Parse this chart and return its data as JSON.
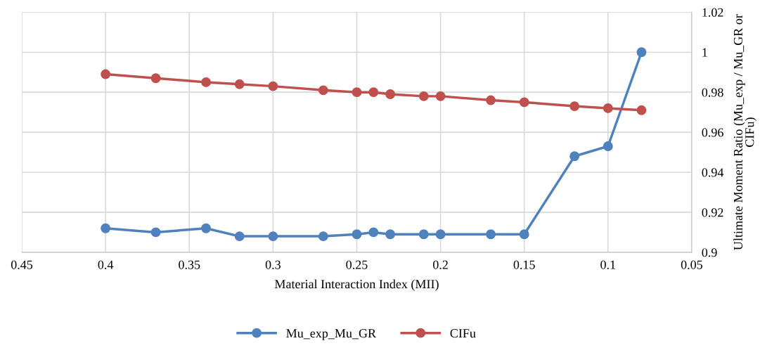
{
  "chart_data": {
    "type": "line",
    "xlabel": "Material Interaction Index (MII)",
    "ylabel": "Ultimate Moment Ratio (Mu_exp / Mu_GR or\nCIFu)",
    "x": [
      0.4,
      0.37,
      0.34,
      0.32,
      0.3,
      0.27,
      0.25,
      0.24,
      0.23,
      0.21,
      0.2,
      0.17,
      0.15,
      0.12,
      0.1,
      0.08
    ],
    "series": [
      {
        "name": "Mu_exp_Mu_GR",
        "color": "#4f81bd",
        "values": [
          0.912,
          0.91,
          0.912,
          0.908,
          0.908,
          0.908,
          0.909,
          0.91,
          0.909,
          0.909,
          0.909,
          0.909,
          0.909,
          0.948,
          0.953,
          1.0
        ]
      },
      {
        "name": "CIFu",
        "color": "#c0504d",
        "values": [
          0.989,
          0.987,
          0.985,
          0.984,
          0.983,
          0.981,
          0.98,
          0.98,
          0.979,
          0.978,
          0.978,
          0.976,
          0.975,
          0.973,
          0.972,
          0.971
        ]
      }
    ],
    "xlim": [
      0.45,
      0.05
    ],
    "xticks": [
      0.45,
      0.4,
      0.35,
      0.3,
      0.25,
      0.2,
      0.15,
      0.1,
      0.05
    ],
    "ylim": [
      0.9,
      1.02
    ],
    "yticks": [
      0.9,
      0.92,
      0.94,
      0.96,
      0.98,
      1,
      1.02
    ],
    "grid": true,
    "legend": "bottom",
    "marker": "circle",
    "line_style": "solid"
  }
}
